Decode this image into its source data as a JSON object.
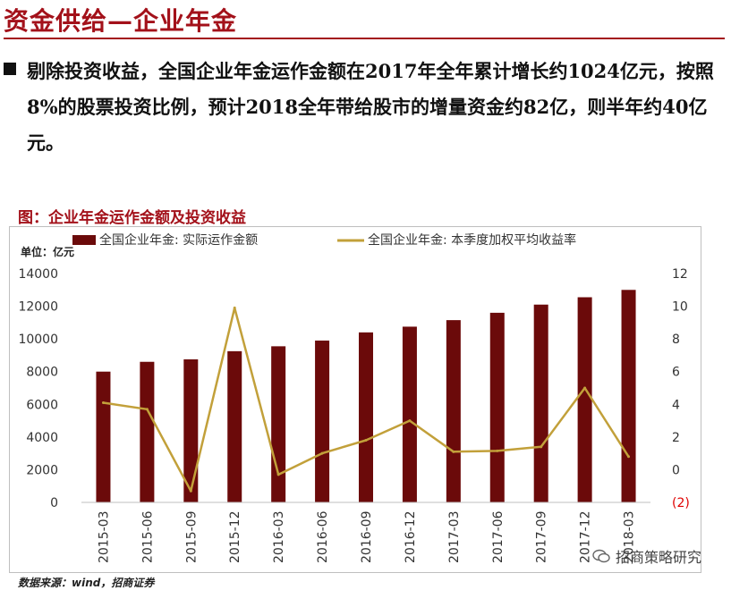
{
  "header": {
    "title": "资金供给—企业年金"
  },
  "bullet": {
    "text": "剔除投资收益，全国企业年金运作金额在2017年全年累计增长约1024亿元，按照8%的股票投资比例，预计2018全年带给股市的增量资金约82亿，则半年约40亿元。"
  },
  "figure": {
    "caption": "图：企业年金运作金额及投资收益",
    "unit_label": "单位：亿元",
    "source": "数据来源：wind，招商证券",
    "watermark": "招商策略研究"
  },
  "colors": {
    "brand": "#a3111a",
    "bar": "#6b0a0a",
    "line": "#c2a03a",
    "negative_tick": "#e00000"
  },
  "chart_data": {
    "type": "bar",
    "categories": [
      "2015-03",
      "2015-06",
      "2015-09",
      "2015-12",
      "2016-03",
      "2016-06",
      "2016-09",
      "2016-12",
      "2017-03",
      "2017-06",
      "2017-09",
      "2017-12",
      "2018-03"
    ],
    "series": [
      {
        "name": "全国企业年金: 实际运作金额",
        "type": "bar",
        "axis": "left",
        "values": [
          8000,
          8600,
          8750,
          9250,
          9550,
          9900,
          10400,
          10750,
          11150,
          11600,
          12100,
          12550,
          13000
        ]
      },
      {
        "name": "全国企业年金: 本季度加权平均收益率",
        "type": "line",
        "axis": "right",
        "values": [
          4.1,
          3.7,
          -1.3,
          9.9,
          -0.3,
          1.0,
          1.8,
          3.0,
          1.1,
          1.15,
          1.4,
          5.0,
          0.8
        ]
      }
    ],
    "y_left": {
      "ylim": [
        0,
        14000
      ],
      "ticks": [
        "0",
        "2000",
        "4000",
        "6000",
        "8000",
        "10000",
        "12000",
        "14000"
      ]
    },
    "y_right": {
      "ylim": [
        -2,
        12
      ],
      "ticks": [
        "(2)",
        "0",
        "2",
        "4",
        "6",
        "8",
        "10",
        "12"
      ]
    },
    "grid": false,
    "legend_position": "top"
  }
}
